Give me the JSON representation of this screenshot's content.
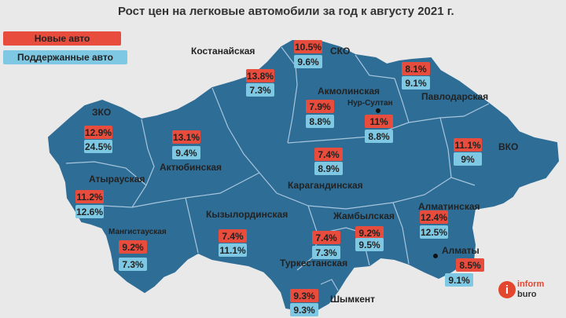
{
  "title": "Рост цен на легковые автомобили за год к августу 2021 г.",
  "legend": {
    "new": "Новые авто",
    "used": "Поддержанные авто"
  },
  "colors": {
    "map": "#2e6d96",
    "border": "#a8c6dd",
    "new": "#e74c3c",
    "used": "#7ec8e3",
    "background": "#e9e9e9"
  },
  "regions": [
    {
      "name": "СКО",
      "new": "10.5%",
      "used": "9.6%"
    },
    {
      "name": "Костанайская",
      "new": "13.8%",
      "used": "7.3%"
    },
    {
      "name": "Павлодарская",
      "new": "8.1%",
      "used": "9.1%"
    },
    {
      "name": "Акмолинская",
      "new": "7.9%",
      "used": "8.8%"
    },
    {
      "name": "Нур-Султан",
      "new": "11%",
      "used": "8.8%"
    },
    {
      "name": "ЗКО",
      "new": "12.9%",
      "used": "24.5%"
    },
    {
      "name": "Актюбинская",
      "new": "13.1%",
      "used": "9.4%"
    },
    {
      "name": "Карагандинская",
      "new": "7.4%",
      "used": "8.9%"
    },
    {
      "name": "ВКО",
      "new": "11.1%",
      "used": "9%"
    },
    {
      "name": "Атырауская",
      "new": "11.2%",
      "used": "12.6%"
    },
    {
      "name": "Кызылординская",
      "new": "7.4%",
      "used": "11.1%"
    },
    {
      "name": "Алматинская",
      "new": "12.4%",
      "used": "12.5%"
    },
    {
      "name": "Жамбылская",
      "new": "9.2%",
      "used": "9.5%"
    },
    {
      "name": "Мангистауская",
      "new": "9.2%",
      "used": "7.3%"
    },
    {
      "name": "Туркестанская",
      "new": "7.4%",
      "used": "7.3%"
    },
    {
      "name": "Алматы",
      "new": "8.5%",
      "used": "9.1%"
    },
    {
      "name": "Шымкент",
      "new": "9.3%",
      "used": "9.3%"
    }
  ],
  "logo": {
    "letter": "i",
    "line1": "inform",
    "line2": "buro"
  }
}
